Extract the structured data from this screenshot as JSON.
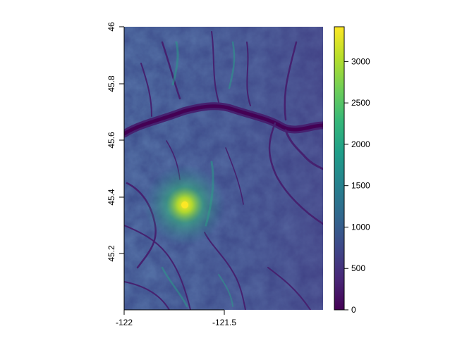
{
  "chart_data": {
    "type": "heatmap",
    "title": "",
    "xlabel": "",
    "ylabel": "",
    "x_ticks": [
      "-122",
      "-121.5"
    ],
    "y_ticks": [
      "45.2",
      "45.4",
      "45.6",
      "45.8",
      "46"
    ],
    "xlim": [
      -122.0,
      -121.0
    ],
    "ylim": [
      45.0,
      46.0
    ],
    "legend": {
      "type": "colorbar",
      "position": "right",
      "min": 0,
      "max": 3420,
      "ticks": [
        "0",
        "500",
        "1000",
        "1500",
        "2000",
        "2500",
        "3000"
      ],
      "colormap": [
        "#440154",
        "#482878",
        "#3e4989",
        "#31688e",
        "#26828e",
        "#1f9e89",
        "#35b779",
        "#6ece58",
        "#b5de2b",
        "#fde725"
      ]
    },
    "features": [
      {
        "name": "peak",
        "x": -121.7,
        "y": 45.37,
        "value": 3420
      },
      {
        "name": "river valley",
        "lat_west": 45.6,
        "lat_center": 45.72,
        "lat_east": 45.65
      }
    ]
  }
}
